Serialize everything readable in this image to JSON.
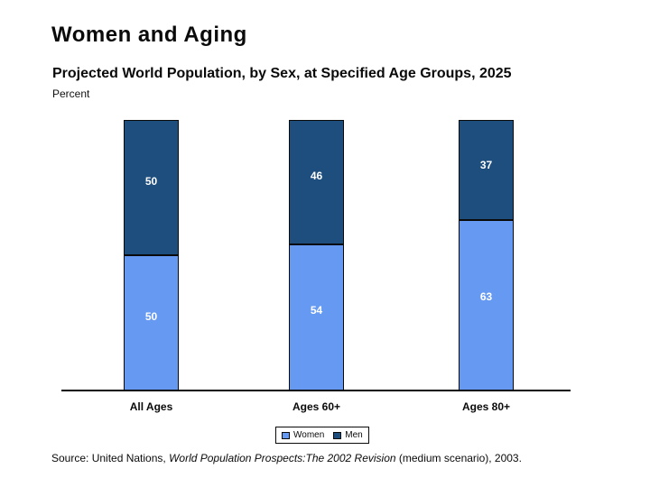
{
  "slide": {
    "title": "Women and Aging",
    "source": {
      "prefix": "Source: United Nations, ",
      "italic": "World Population Prospects:The 2002 Revision",
      "suffix": " (medium scenario), 2003."
    }
  },
  "chart_data": {
    "type": "bar",
    "subtype": "stacked-percent-column",
    "title": "Projected World Population, by Sex, at Specified Age Groups, 2025",
    "ylabel": "Percent",
    "categories": [
      "All Ages",
      "Ages 60+",
      "Ages 80+"
    ],
    "series": [
      {
        "name": "Women",
        "color": "#6699F2",
        "position": "bottom",
        "values": [
          50,
          54,
          63
        ]
      },
      {
        "name": "Men",
        "color": "#1E4E7E",
        "position": "top",
        "values": [
          50,
          46,
          37
        ]
      }
    ],
    "ylim": [
      0,
      100
    ],
    "grid": false,
    "value_labels": true,
    "legend_position": "bottom",
    "colors": {
      "women": "#6699F2",
      "men": "#1E4E7E",
      "bar_border": "#0a0a0a",
      "axis": "#0a0a0a"
    }
  }
}
